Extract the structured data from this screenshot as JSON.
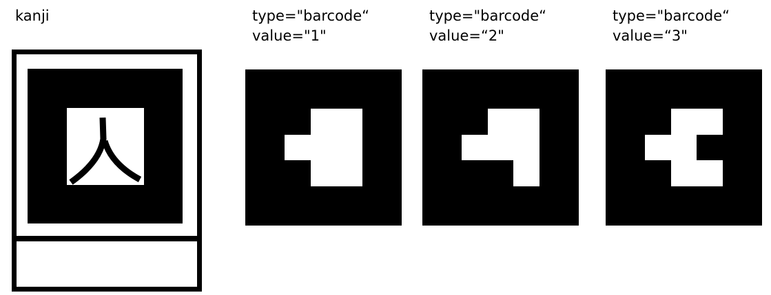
{
  "kanji_marker": {
    "label": "kanji",
    "glyph": "人"
  },
  "barcode_markers": [
    {
      "type_line": "type=\"barcode“",
      "value_line": "value=\"1\""
    },
    {
      "type_line": "type=\"barcode“",
      "value_line": "value=“2\""
    },
    {
      "type_line": "type=\"barcode“",
      "value_line": "value=“3\""
    }
  ],
  "colors": {
    "ink": "#000000",
    "paper": "#ffffff"
  }
}
